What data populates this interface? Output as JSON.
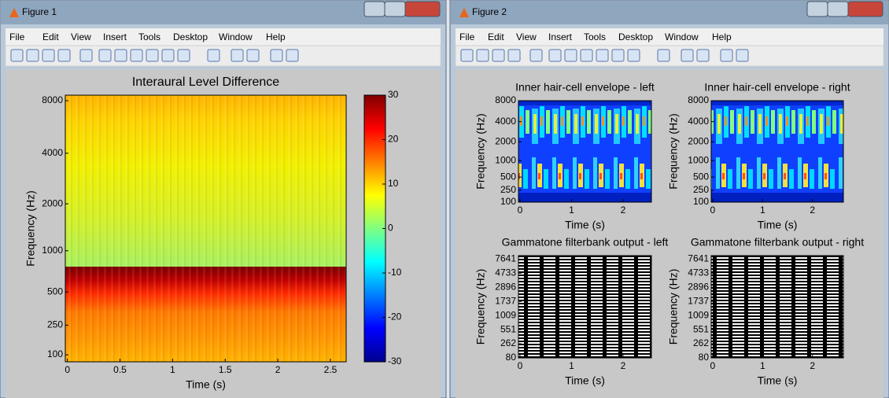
{
  "windows": [
    {
      "title": "Figure 1",
      "menu": [
        "File",
        "Edit",
        "View",
        "Insert",
        "Tools",
        "Desktop",
        "Window",
        "Help"
      ],
      "axes": [
        {
          "title": "Interaural Level Difference",
          "xlabel": "Time (s)",
          "ylabel": "Frequency (Hz)",
          "xlim": [
            -0.02,
            2.65
          ],
          "xticks": [
            0,
            0.5,
            1,
            1.5,
            2,
            2.5
          ],
          "yscale": "erb",
          "ylim": [
            72,
            8600
          ],
          "yticks": [
            100,
            250,
            500,
            1000,
            2000,
            4000,
            8000
          ],
          "colorbar": {
            "lim": [
              -30,
              30
            ],
            "ticks": [
              -30,
              -20,
              -10,
              0,
              10,
              20,
              30
            ]
          }
        }
      ]
    },
    {
      "title": "Figure 2",
      "menu": [
        "File",
        "Edit",
        "View",
        "Insert",
        "Tools",
        "Desktop",
        "Window",
        "Help"
      ],
      "axes": [
        {
          "title": "Inner hair-cell envelope - left",
          "xlabel": "Time (s)",
          "ylabel": "Frequency (Hz)",
          "xlim": [
            -0.03,
            2.55
          ],
          "xticks": [
            0,
            1,
            2
          ],
          "yscale": "erb",
          "ylim": [
            100,
            8000
          ],
          "yticks": [
            100,
            250,
            500,
            1000,
            2000,
            4000,
            8000
          ]
        },
        {
          "title": "Inner hair-cell envelope - right",
          "xlabel": "Time (s)",
          "ylabel": "Frequency (Hz)",
          "xlim": [
            -0.03,
            2.62
          ],
          "xticks": [
            0,
            1,
            2
          ],
          "yscale": "erb",
          "ylim": [
            100,
            8000
          ],
          "yticks": [
            100,
            250,
            500,
            1000,
            2000,
            4000,
            8000
          ]
        },
        {
          "title": "Gammatone filterbank output - left",
          "xlabel": "Time (s)",
          "ylabel": "Frequency (Hz)",
          "xlim": [
            -0.03,
            2.55
          ],
          "xticks": [
            0,
            1,
            2
          ],
          "yscale": "erb",
          "ylim": [
            80,
            8600
          ],
          "yticks": [
            80,
            262,
            551,
            1009,
            1737,
            2896,
            4733,
            7641
          ]
        },
        {
          "title": "Gammatone filterbank output - right",
          "xlabel": "Time (s)",
          "ylabel": "Frequency (Hz)",
          "xlim": [
            -0.03,
            2.62
          ],
          "xticks": [
            0,
            1,
            2
          ],
          "yscale": "erb",
          "ylim": [
            80,
            8600
          ],
          "yticks": [
            80,
            262,
            551,
            1009,
            1737,
            2896,
            4733,
            7641
          ]
        }
      ]
    }
  ]
}
